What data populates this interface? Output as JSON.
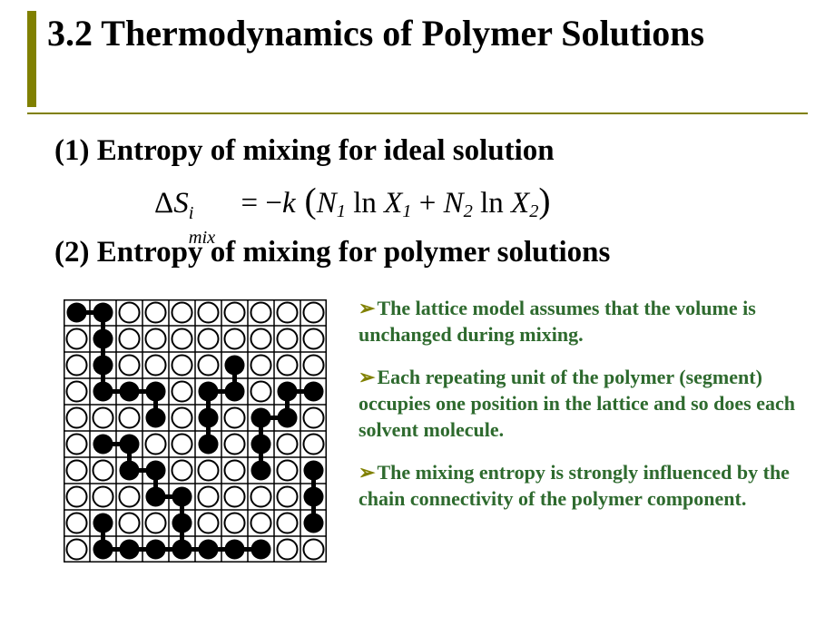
{
  "colors": {
    "accent": "#808000",
    "text": "#000000",
    "bullet_text": "#2e6a2e",
    "background": "#ffffff"
  },
  "title": "3.2 Thermodynamics of Polymer Solutions",
  "section1": "(1) Entropy of mixing for ideal solution",
  "section2": "(2) Entropy of mixing for polymer solutions",
  "equation": {
    "delta": "Δ",
    "S": "S",
    "sup_i": "i",
    "sub_mix": "mix",
    "eq": " = ",
    "neg_k": "−k",
    "open": " (",
    "N": "N",
    "sub1": "1",
    "ln": " ln ",
    "X": "X",
    "plus": " + ",
    "sub2": "2",
    "close": ")"
  },
  "bullets": [
    "The lattice model assumes that the volume is unchanged during mixing.",
    "Each repeating unit of the polymer (segment) occupies one position in the lattice and so does each solvent molecule.",
    "The mixing entropy is strongly influenced by the chain connectivity of the polymer component."
  ],
  "lattice": {
    "grid": 10,
    "cell": 29,
    "polymer_cells": [
      [
        0,
        0
      ],
      [
        1,
        0
      ],
      [
        1,
        1
      ],
      [
        1,
        2
      ],
      [
        6,
        2
      ],
      [
        1,
        3
      ],
      [
        2,
        3
      ],
      [
        3,
        3
      ],
      [
        5,
        3
      ],
      [
        6,
        3
      ],
      [
        8,
        3
      ],
      [
        9,
        3
      ],
      [
        3,
        4
      ],
      [
        5,
        4
      ],
      [
        7,
        4
      ],
      [
        8,
        4
      ],
      [
        1,
        5
      ],
      [
        2,
        5
      ],
      [
        5,
        5
      ],
      [
        7,
        5
      ],
      [
        2,
        6
      ],
      [
        3,
        6
      ],
      [
        7,
        6
      ],
      [
        9,
        6
      ],
      [
        3,
        7
      ],
      [
        4,
        7
      ],
      [
        9,
        7
      ],
      [
        1,
        8
      ],
      [
        4,
        8
      ],
      [
        9,
        8
      ],
      [
        1,
        9
      ],
      [
        2,
        9
      ],
      [
        3,
        9
      ],
      [
        4,
        9
      ],
      [
        5,
        9
      ],
      [
        6,
        9
      ],
      [
        7,
        9
      ]
    ],
    "bonds": [
      [
        0,
        0,
        1,
        0
      ],
      [
        1,
        0,
        1,
        1
      ],
      [
        1,
        1,
        1,
        2
      ],
      [
        1,
        2,
        1,
        3
      ],
      [
        1,
        3,
        2,
        3
      ],
      [
        2,
        3,
        3,
        3
      ],
      [
        3,
        3,
        3,
        4
      ],
      [
        6,
        2,
        6,
        3
      ],
      [
        5,
        3,
        6,
        3
      ],
      [
        5,
        3,
        5,
        4
      ],
      [
        5,
        4,
        5,
        5
      ],
      [
        8,
        3,
        9,
        3
      ],
      [
        8,
        3,
        8,
        4
      ],
      [
        7,
        4,
        8,
        4
      ],
      [
        7,
        4,
        7,
        5
      ],
      [
        7,
        5,
        7,
        6
      ],
      [
        1,
        5,
        2,
        5
      ],
      [
        2,
        5,
        2,
        6
      ],
      [
        2,
        6,
        3,
        6
      ],
      [
        3,
        6,
        3,
        7
      ],
      [
        3,
        7,
        4,
        7
      ],
      [
        4,
        7,
        4,
        8
      ],
      [
        9,
        6,
        9,
        7
      ],
      [
        9,
        7,
        9,
        8
      ],
      [
        1,
        8,
        1,
        9
      ],
      [
        1,
        9,
        2,
        9
      ],
      [
        2,
        9,
        3,
        9
      ],
      [
        3,
        9,
        4,
        9
      ],
      [
        4,
        9,
        5,
        9
      ],
      [
        5,
        9,
        6,
        9
      ],
      [
        6,
        9,
        7,
        9
      ],
      [
        4,
        8,
        4,
        9
      ]
    ]
  }
}
